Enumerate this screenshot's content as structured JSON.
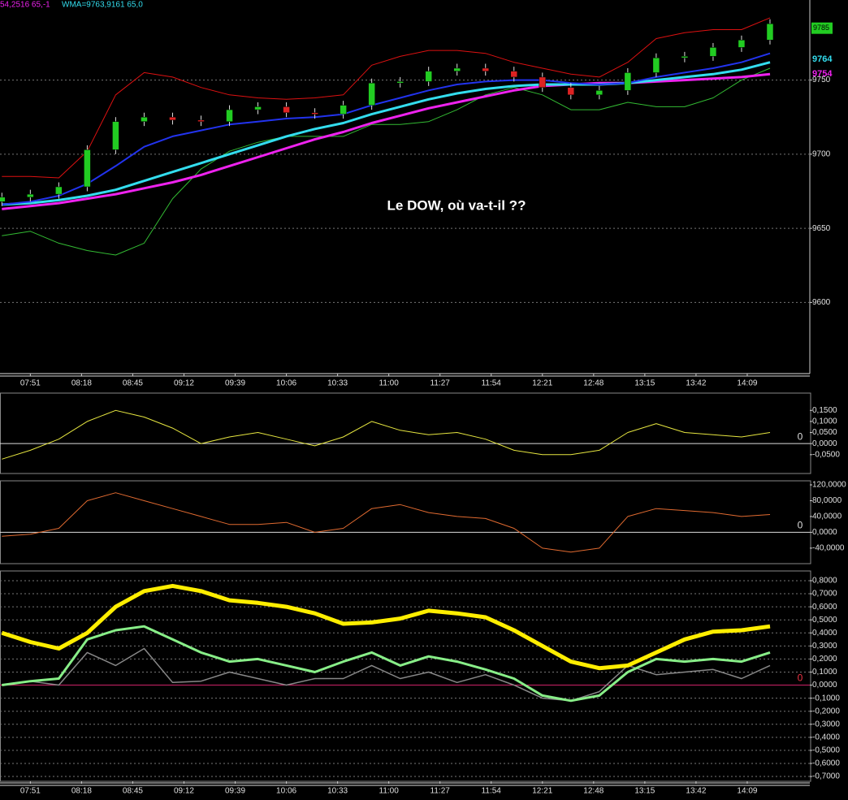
{
  "header": {
    "left": "54,2516  65,-1",
    "right": "WMA=9763,9161  65,0"
  },
  "chart_data": [
    {
      "type": "candlestick",
      "annotation": "Le DOW, où va-t-il ??",
      "x": [
        "07:36",
        "07:51",
        "08:06",
        "08:21",
        "08:36",
        "08:51",
        "09:06",
        "09:21",
        "09:36",
        "09:51",
        "10:06",
        "10:21",
        "10:36",
        "10:51",
        "11:06",
        "11:21",
        "11:36",
        "11:51",
        "12:06",
        "12:21",
        "12:36",
        "12:51",
        "13:06",
        "13:21",
        "13:36",
        "13:51",
        "14:06",
        "14:21"
      ],
      "candles": {
        "open": [
          9668,
          9671,
          9673,
          9678,
          9703,
          9722,
          9725,
          9723,
          9722,
          9730,
          9732,
          9728,
          9727,
          9733,
          9748,
          9749,
          9756,
          9758,
          9756,
          9752,
          9745,
          9740,
          9743,
          9755,
          9765,
          9766,
          9772,
          9777
        ],
        "high": [
          9674,
          9676,
          9681,
          9706,
          9725,
          9728,
          9728,
          9726,
          9733,
          9735,
          9735,
          9731,
          9736,
          9751,
          9752,
          9759,
          9761,
          9761,
          9759,
          9755,
          9748,
          9746,
          9758,
          9768,
          9769,
          9775,
          9780,
          9791
        ],
        "low": [
          9665,
          9668,
          9670,
          9675,
          9700,
          9719,
          9720,
          9719,
          9719,
          9727,
          9725,
          9724,
          9724,
          9730,
          9745,
          9746,
          9753,
          9753,
          9749,
          9742,
          9737,
          9737,
          9740,
          9752,
          9762,
          9763,
          9769,
          9774
        ],
        "close": [
          9671,
          9673,
          9678,
          9703,
          9722,
          9725,
          9723,
          9722,
          9730,
          9732,
          9728,
          9727,
          9733,
          9748,
          9749,
          9756,
          9758,
          9756,
          9752,
          9745,
          9740,
          9743,
          9755,
          9765,
          9766,
          9772,
          9777,
          9788
        ],
        "up_color": "#22cc22",
        "down_color": "#dd2222"
      },
      "series": [
        {
          "color": "#dd1111",
          "width": 1,
          "values": [
            9685,
            9685,
            9684,
            9702,
            9740,
            9755,
            9752,
            9745,
            9740,
            9738,
            9737,
            9738,
            9740,
            9760,
            9766,
            9770,
            9770,
            9768,
            9762,
            9758,
            9754,
            9752,
            9762,
            9778,
            9782,
            9784,
            9784,
            9792
          ]
        },
        {
          "color": "#33bb33",
          "width": 1,
          "values": [
            9645,
            9648,
            9640,
            9635,
            9632,
            9640,
            9670,
            9690,
            9702,
            9708,
            9712,
            9712,
            9712,
            9720,
            9720,
            9722,
            9730,
            9740,
            9745,
            9740,
            9730,
            9730,
            9735,
            9732,
            9732,
            9738,
            9750,
            9758
          ]
        },
        {
          "color": "#ee22ee",
          "width": 3,
          "values": [
            9663,
            9665,
            9667,
            9670,
            9673,
            9677,
            9681,
            9686,
            9692,
            9698,
            9704,
            9710,
            9715,
            9721,
            9726,
            9731,
            9735,
            9739,
            9743,
            9746,
            9747,
            9748,
            9748,
            9749,
            9750,
            9751,
            9752,
            9754
          ]
        },
        {
          "color": "#33ddee",
          "width": 3,
          "values": [
            9666,
            9667,
            9669,
            9672,
            9676,
            9682,
            9688,
            9694,
            9700,
            9706,
            9712,
            9717,
            9721,
            9727,
            9732,
            9737,
            9741,
            9744,
            9746,
            9747,
            9747,
            9747,
            9748,
            9750,
            9752,
            9754,
            9757,
            9762
          ]
        },
        {
          "color": "#2233ee",
          "width": 2,
          "values": [
            9666,
            9668,
            9672,
            9680,
            9692,
            9705,
            9712,
            9716,
            9720,
            9722,
            9724,
            9725,
            9727,
            9733,
            9738,
            9743,
            9747,
            9749,
            9750,
            9750,
            9748,
            9747,
            9748,
            9752,
            9755,
            9758,
            9762,
            9768
          ]
        }
      ],
      "markers": [
        {
          "value": 9785,
          "color": "#22cc22"
        },
        {
          "value": 9764,
          "color": "#33ddee"
        },
        {
          "value": 9754,
          "color": "#ee22ee"
        }
      ],
      "xlim": [
        "07:35",
        "14:42"
      ],
      "xticks": [
        "07:51",
        "08:18",
        "08:45",
        "09:12",
        "09:39",
        "10:06",
        "10:33",
        "11:00",
        "11:27",
        "11:54",
        "12:21",
        "12:48",
        "13:15",
        "13:42",
        "14:09"
      ],
      "ylim": [
        9552,
        9804
      ],
      "yticks": [
        9600,
        9650,
        9700,
        9750
      ],
      "grid": true
    },
    {
      "type": "line",
      "x": [
        "07:36",
        "07:51",
        "08:06",
        "08:21",
        "08:36",
        "08:51",
        "09:06",
        "09:21",
        "09:36",
        "09:51",
        "10:06",
        "10:21",
        "10:36",
        "10:51",
        "11:06",
        "11:21",
        "11:36",
        "11:51",
        "12:06",
        "12:21",
        "12:36",
        "12:51",
        "13:06",
        "13:21",
        "13:36",
        "13:51",
        "14:06",
        "14:21"
      ],
      "series": [
        {
          "color": "#e6e640",
          "width": 1,
          "values": [
            -0.07,
            -0.03,
            0.02,
            0.1,
            0.15,
            0.12,
            0.07,
            0.0,
            0.03,
            0.05,
            0.02,
            -0.01,
            0.03,
            0.1,
            0.06,
            0.04,
            0.05,
            0.02,
            -0.03,
            -0.05,
            -0.05,
            -0.03,
            0.05,
            0.09,
            0.05,
            0.04,
            0.03,
            0.05
          ]
        }
      ],
      "hline": 0,
      "hline_color": "#dddddd",
      "xlim": [
        "07:35",
        "14:42"
      ],
      "ylim": [
        -0.135,
        0.228
      ],
      "yticks": [
        {
          "value": 0.15,
          "label": "0,1500"
        },
        {
          "value": 0.1,
          "label": "0,1000"
        },
        {
          "value": 0.05,
          "label": "0,0500"
        },
        {
          "value": 0,
          "label": "0,0000"
        },
        {
          "value": -0.05,
          "label": "-0,0500"
        }
      ],
      "grid": false
    },
    {
      "type": "line",
      "x": [
        "07:36",
        "07:51",
        "08:06",
        "08:21",
        "08:36",
        "08:51",
        "09:06",
        "09:21",
        "09:36",
        "09:51",
        "10:06",
        "10:21",
        "10:36",
        "10:51",
        "11:06",
        "11:21",
        "11:36",
        "11:51",
        "12:06",
        "12:21",
        "12:36",
        "12:51",
        "13:06",
        "13:21",
        "13:36",
        "13:51",
        "14:06",
        "14:21"
      ],
      "series": [
        {
          "color": "#e06a30",
          "width": 1,
          "values": [
            -10,
            -5,
            10,
            80,
            100,
            80,
            60,
            40,
            20,
            20,
            25,
            0,
            10,
            60,
            70,
            50,
            40,
            35,
            10,
            -40,
            -50,
            -40,
            40,
            60,
            55,
            50,
            40,
            45
          ]
        }
      ],
      "hline": 0,
      "hline_color": "#dddddd",
      "xlim": [
        "07:35",
        "14:42"
      ],
      "ylim": [
        -79.3,
        130.3
      ],
      "yticks": [
        {
          "value": 120,
          "label": "120,0000"
        },
        {
          "value": 80,
          "label": "80,0000"
        },
        {
          "value": 40,
          "label": "40,0000"
        },
        {
          "value": 0,
          "label": "0,0000"
        },
        {
          "value": -40,
          "label": "-40,0000"
        }
      ],
      "grid": false
    },
    {
      "type": "line",
      "x": [
        "07:36",
        "07:51",
        "08:06",
        "08:21",
        "08:36",
        "08:51",
        "09:06",
        "09:21",
        "09:36",
        "09:51",
        "10:06",
        "10:21",
        "10:36",
        "10:51",
        "11:06",
        "11:21",
        "11:36",
        "11:51",
        "12:06",
        "12:21",
        "12:36",
        "12:51",
        "13:06",
        "13:21",
        "13:36",
        "13:51",
        "14:06",
        "14:21"
      ],
      "series": [
        {
          "color": "#888888",
          "width": 1.5,
          "values": [
            0.0,
            0.03,
            0.0,
            0.25,
            0.15,
            0.28,
            0.02,
            0.03,
            0.1,
            0.05,
            0.0,
            0.05,
            0.05,
            0.15,
            0.05,
            0.1,
            0.02,
            0.08,
            0.0,
            -0.1,
            -0.12,
            -0.05,
            0.15,
            0.08,
            0.1,
            0.12,
            0.05,
            0.15
          ]
        },
        {
          "color": "#88ee88",
          "width": 3,
          "values": [
            0.0,
            0.03,
            0.05,
            0.35,
            0.42,
            0.45,
            0.35,
            0.25,
            0.18,
            0.2,
            0.15,
            0.1,
            0.18,
            0.25,
            0.15,
            0.22,
            0.18,
            0.12,
            0.05,
            -0.08,
            -0.12,
            -0.08,
            0.1,
            0.2,
            0.18,
            0.2,
            0.18,
            0.25
          ]
        },
        {
          "color": "#ffee00",
          "width": 5,
          "values": [
            0.4,
            0.33,
            0.28,
            0.4,
            0.6,
            0.72,
            0.76,
            0.72,
            0.65,
            0.63,
            0.6,
            0.55,
            0.47,
            0.48,
            0.51,
            0.57,
            0.55,
            0.52,
            0.42,
            0.3,
            0.18,
            0.13,
            0.15,
            0.25,
            0.35,
            0.41,
            0.42,
            0.45
          ]
        }
      ],
      "hline": 0,
      "hline_color": "#cc2266",
      "xlim": [
        "07:35",
        "14:42"
      ],
      "xticks": [
        "07:51",
        "08:18",
        "08:45",
        "09:12",
        "09:39",
        "10:06",
        "10:33",
        "11:00",
        "11:27",
        "11:54",
        "12:21",
        "12:48",
        "13:15",
        "13:42",
        "14:09"
      ],
      "ylim": [
        -0.737,
        0.8745
      ],
      "yticks": [
        {
          "value": 0.8,
          "label": "0,8000"
        },
        {
          "value": 0.7,
          "label": "0,7000"
        },
        {
          "value": 0.6,
          "label": "0,6000"
        },
        {
          "value": 0.5,
          "label": "0,5000"
        },
        {
          "value": 0.4,
          "label": "0,4000"
        },
        {
          "value": 0.3,
          "label": "0,3000"
        },
        {
          "value": 0.2,
          "label": "0,2000"
        },
        {
          "value": 0.1,
          "label": "0,1000"
        },
        {
          "value": 0,
          "label": "0,0000"
        },
        {
          "value": -0.1,
          "label": "-0,1000"
        },
        {
          "value": -0.2,
          "label": "-0,2000"
        },
        {
          "value": -0.3,
          "label": "-0,3000"
        },
        {
          "value": -0.4,
          "label": "-0,4000"
        },
        {
          "value": -0.5,
          "label": "-0,5000"
        },
        {
          "value": -0.6,
          "label": "-0,6000"
        },
        {
          "value": -0.7,
          "label": "-0,7000"
        }
      ],
      "grid": true
    }
  ]
}
